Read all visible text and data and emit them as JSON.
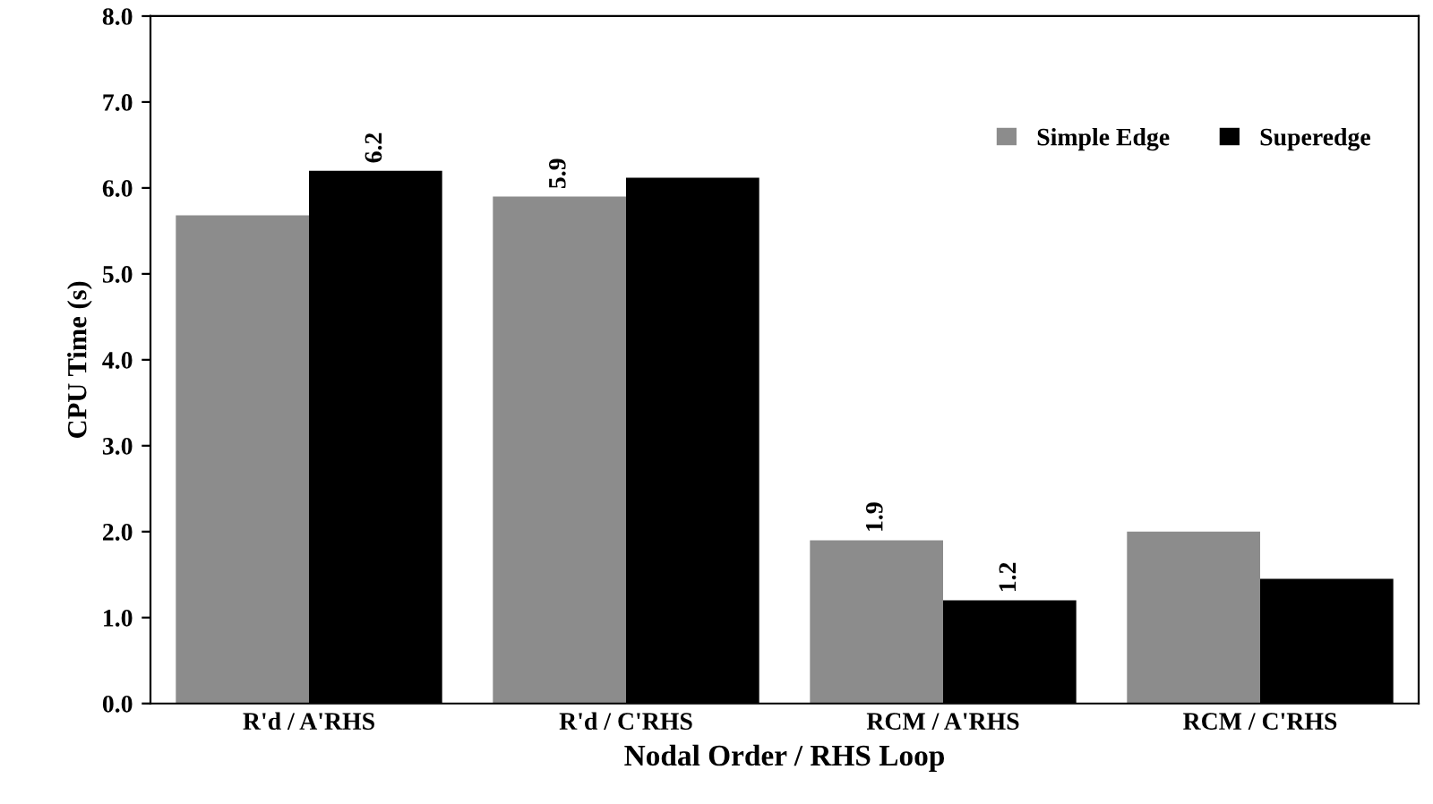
{
  "chart_data": {
    "type": "bar",
    "xlabel": "Nodal Order / RHS Loop",
    "ylabel": "CPU Time (s)",
    "categories": [
      "R'd / A'RHS",
      "R'd / C'RHS",
      "RCM / A'RHS",
      "RCM / C'RHS"
    ],
    "series": [
      {
        "name": "Simple Edge",
        "color": "#8c8c8c",
        "values": [
          5.68,
          5.9,
          1.9,
          2.0
        ],
        "value_labels": [
          null,
          "5.9",
          "1.9",
          null
        ]
      },
      {
        "name": "Superedge",
        "color": "#000000",
        "values": [
          6.2,
          6.12,
          1.2,
          1.45
        ],
        "value_labels": [
          "6.2",
          null,
          "1.2",
          null
        ]
      }
    ],
    "ylim": [
      0,
      8
    ],
    "yticks": [
      {
        "value": 0,
        "label": "0.0"
      },
      {
        "value": 1,
        "label": "1.0"
      },
      {
        "value": 2,
        "label": "2.0"
      },
      {
        "value": 3,
        "label": "3.0"
      },
      {
        "value": 4,
        "label": "4.0"
      },
      {
        "value": 5,
        "label": "5.0"
      },
      {
        "value": 6,
        "label": "6.0"
      },
      {
        "value": 7,
        "label": "7.0"
      },
      {
        "value": 8,
        "label": "8.0"
      }
    ],
    "legend": "top right"
  }
}
